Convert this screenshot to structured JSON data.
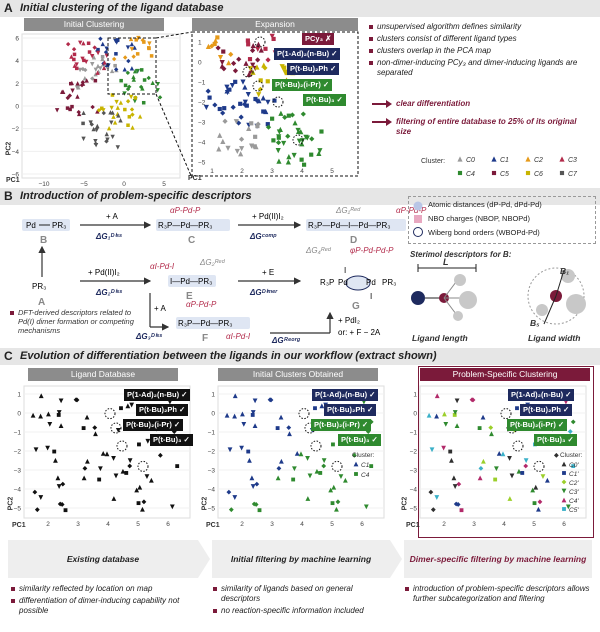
{
  "sectionA": {
    "letter": "A",
    "title": "Initial clustering of the ligand database",
    "tab_initial": "Initial Clustering",
    "tab_expansion": "Expansion",
    "xaxis": "PC1",
    "yaxis": "PC2",
    "x_ticks": [
      "−10",
      "−5",
      "0",
      "5"
    ],
    "y_ticks": [
      "6",
      "4",
      "2",
      "0",
      "−2",
      "−4",
      "−6"
    ],
    "exp_y_ticks": [
      "1",
      "0",
      "−1",
      "−2",
      "−3",
      "−4",
      "−5"
    ],
    "exp_x_ticks": [
      "1",
      "2",
      "3",
      "4",
      "5"
    ],
    "badges": [
      {
        "text": "PCy₃ ✗",
        "color": "maroon"
      },
      {
        "text": "P(1-Ad)₂(n-Bu) ✓",
        "color": "navy"
      },
      {
        "text": "P(t-Bu)₂Ph ✓",
        "color": "navy"
      },
      {
        "text": "P(t-Bu)₂(i-Pr) ✓",
        "color": "green"
      },
      {
        "text": "P(t-Bu)₃ ✓",
        "color": "green"
      }
    ],
    "bullets": [
      "unsupervised algorithm defines similarity",
      "clusters consist of different ligand types",
      "clusters overlap in the PCA map",
      "non-dimer-inducing PCy₃ and dimer-inducing ligands are separated"
    ],
    "conclusions": [
      "clear differentiation",
      "filtering of entire database to 25% of its original size"
    ],
    "cluster_label": "Cluster:",
    "clusters": [
      "C0",
      "C1",
      "C2",
      "C3",
      "C4",
      "C5",
      "C6",
      "C7"
    ],
    "cluster_colors": [
      "#9a9a9a",
      "#1e3a8a",
      "#e69a1a",
      "#b22a4a",
      "#2f8a2f",
      "#7b1a3a",
      "#c8b400",
      "#555555"
    ]
  },
  "sectionB": {
    "letter": "B",
    "title": "Introduction of problem-specific descriptors",
    "species": [
      "B",
      "A",
      "C",
      "D",
      "E",
      "F",
      "G"
    ],
    "reactions": [
      "+ A",
      "ΔG₁^Diss",
      "+ Pd(II)I₂",
      "ΔG^Comp",
      "+ E",
      "ΔG^Dimer",
      "ΔG₃^Diss",
      "ΔG^Reorg",
      "+ PdI₂",
      "or: + F − 2A"
    ],
    "descriptor_note": "DFT-derived descriptors related to Pd(I) dimer formation or competing mechanisms",
    "legend": [
      "Atomic distances (dP-Pd, dPd-Pd)",
      "NBO charges (NBOP, NBOPd)",
      "Wiberg bond orders (WBOPd-Pd)"
    ],
    "sterimol_title": "Sterimol descriptors for B:",
    "ligand_length": "Ligand length",
    "ligand_width": "Ligand width",
    "L": "L",
    "B1": "B₁",
    "B5": "B₅"
  },
  "sectionC": {
    "letter": "C",
    "title": "Evolution of differentiation between the ligands in our workflow (extract shown)",
    "panels": [
      {
        "tab": "Ligand Database",
        "step": "Existing database",
        "notes": [
          "similarity reflected by location on map",
          "differentiation of dimer-inducing capability not possible"
        ]
      },
      {
        "tab": "Initial Clusters Obtained",
        "step": "Initial filtering by machine learning",
        "notes": [
          "similarity of ligands based on general descriptors",
          "no reaction-specific information included"
        ]
      },
      {
        "tab": "Problem-Specific Clustering",
        "step": "Dimer-specific filtering by machine learning",
        "notes": [
          "introduction of problem-specific descriptors allows further subcategorization and filtering"
        ]
      }
    ],
    "badges": [
      "P(1-Ad)₂(n-Bu) ✓",
      "P(t-Bu)₂Ph ✓",
      "P(t-Bu)₂(i-Pr) ✓",
      "P(t-Bu)₃ ✓"
    ],
    "cluster_label": "Cluster:",
    "clusters2": [
      "C1",
      "C4"
    ],
    "clusters3": [
      "C0'",
      "C1'",
      "C2'",
      "C3'",
      "C4'",
      "C5'"
    ],
    "x_ticks": [
      "2",
      "3",
      "4",
      "5",
      "6"
    ],
    "y_ticks": [
      "1",
      "0",
      "−1",
      "−2",
      "−3",
      "−4",
      "−5"
    ],
    "xaxis": "PC1",
    "yaxis": "PC2"
  }
}
